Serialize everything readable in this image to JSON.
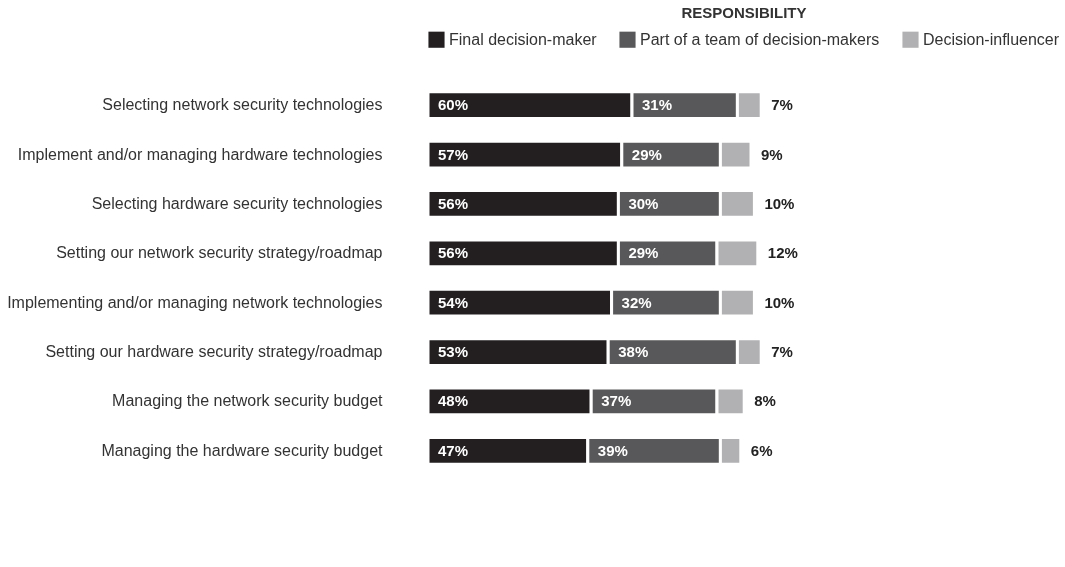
{
  "chart_data": {
    "type": "bar",
    "orientation": "horizontal",
    "stacked": true,
    "legend_title": "RESPONSIBILITY",
    "legend": "top",
    "categories": [
      "Selecting network security technologies",
      "Implement and/or managing hardware technologies",
      "Selecting hardware security technologies",
      "Setting our network security strategy/roadmap",
      "Implementing and/or managing network technologies",
      "Setting our hardware security strategy/roadmap",
      "Managing the network security budget",
      "Managing the hardware security budget"
    ],
    "series": [
      {
        "name": "Final decision-maker",
        "color": "#231f20",
        "values": [
          60,
          57,
          56,
          56,
          54,
          53,
          48,
          47
        ],
        "value_labels": [
          "60%",
          "57%",
          "56%",
          "56%",
          "54%",
          "53%",
          "48%",
          "47%"
        ]
      },
      {
        "name": "Part of a team of decision-makers",
        "color": "#58585a",
        "values": [
          31,
          29,
          30,
          29,
          32,
          38,
          37,
          39
        ],
        "value_labels": [
          "31%",
          "29%",
          "30%",
          "29%",
          "32%",
          "38%",
          "37%",
          "39%"
        ]
      },
      {
        "name": "Decision-influencer",
        "color": "#b1b1b3",
        "values": [
          7,
          9,
          10,
          12,
          10,
          7,
          8,
          6
        ],
        "value_labels": [
          "7%",
          "9%",
          "10%",
          "12%",
          "10%",
          "7%",
          "8%",
          "6%"
        ]
      }
    ]
  }
}
